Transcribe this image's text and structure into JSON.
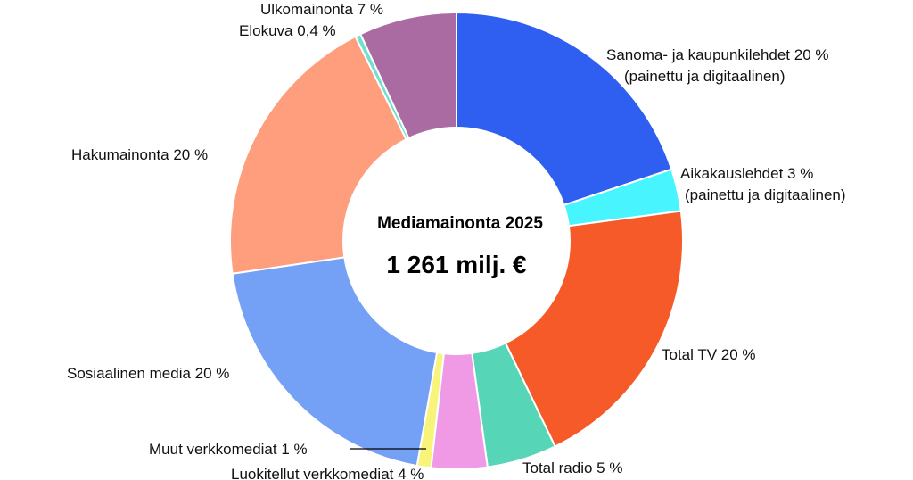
{
  "chart_data": {
    "type": "pie",
    "center_title": "Mediamainonta 2025",
    "center_value": "1 261 milj. €",
    "slices": [
      {
        "label": "Sanoma- ja kaupunkilehdet 20 %",
        "label2": "(painettu ja digitaalinen)",
        "value": 20,
        "color": "#2f5ff0"
      },
      {
        "label": "Aikakauslehdet 3 %",
        "label2": "(painettu ja digitaalinen)",
        "value": 3,
        "color": "#48f5ff"
      },
      {
        "label": "Total TV 20 %",
        "label2": "",
        "value": 20,
        "color": "#f55a28"
      },
      {
        "label": "Total radio 5 %",
        "label2": "",
        "value": 5,
        "color": "#56d6b6"
      },
      {
        "label": "Luokitellut verkkomediat 4 %",
        "label2": "",
        "value": 4,
        "color": "#f09ae6"
      },
      {
        "label": "Muut verkkomediat 1 %",
        "label2": "",
        "value": 1,
        "color": "#f8f47a"
      },
      {
        "label": "Sosiaalinen media 20 %",
        "label2": "",
        "value": 20,
        "color": "#74a0f5"
      },
      {
        "label": "Hakumainonta 20 %",
        "label2": "",
        "value": 20,
        "color": "#ff9e7c"
      },
      {
        "label": "Elokuva 0,4 %",
        "label2": "",
        "value": 0.4,
        "color": "#6ee0d0"
      },
      {
        "label": "Ulkomainonta 7 %",
        "label2": "",
        "value": 7,
        "color": "#a96ba2"
      }
    ]
  }
}
